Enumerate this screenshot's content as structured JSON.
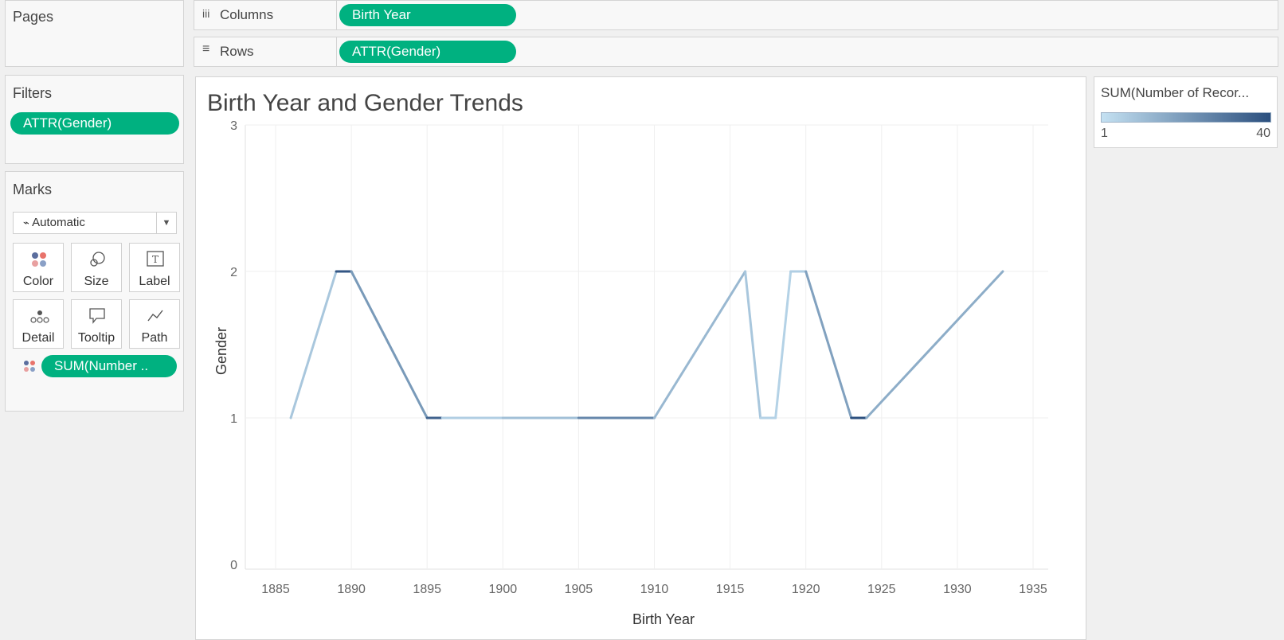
{
  "shelves": {
    "pages_label": "Pages",
    "columns_label": "Columns",
    "columns_pill": "Birth Year",
    "rows_label": "Rows",
    "rows_pill": "ATTR(Gender)",
    "filters_label": "Filters",
    "filters_pill": "ATTR(Gender)"
  },
  "marks": {
    "title": "Marks",
    "type": "Automatic",
    "buttons": [
      "Color",
      "Size",
      "Label",
      "Detail",
      "Tooltip",
      "Path"
    ],
    "color_pill": "SUM(Number .."
  },
  "legend": {
    "title": "SUM(Number of Recor...",
    "min": "1",
    "max": "40",
    "color_low": "#c4e1f2",
    "color_high": "#2b4f7e"
  },
  "colors": {
    "pill": "#00b180"
  },
  "chart_data": {
    "type": "line",
    "title": "Birth Year and Gender Trends",
    "xlabel": "Birth Year",
    "ylabel": "Gender",
    "x_ticks": [
      1885,
      1890,
      1895,
      1900,
      1905,
      1910,
      1915,
      1920,
      1925,
      1930,
      1935
    ],
    "y_ticks": [
      0,
      1,
      2,
      3
    ],
    "xlim": [
      1883,
      1936
    ],
    "ylim": [
      0,
      3
    ],
    "grid": true,
    "points": [
      {
        "x": 1886,
        "y": 1,
        "count": 1
      },
      {
        "x": 1889,
        "y": 2,
        "count": 8
      },
      {
        "x": 1890,
        "y": 2,
        "count": 38
      },
      {
        "x": 1895,
        "y": 1,
        "count": 20
      },
      {
        "x": 1896,
        "y": 1,
        "count": 35
      },
      {
        "x": 1900,
        "y": 1,
        "count": 6
      },
      {
        "x": 1905,
        "y": 1,
        "count": 10
      },
      {
        "x": 1910,
        "y": 1,
        "count": 25
      },
      {
        "x": 1916,
        "y": 2,
        "count": 12
      },
      {
        "x": 1917,
        "y": 1,
        "count": 8
      },
      {
        "x": 1918,
        "y": 1,
        "count": 5
      },
      {
        "x": 1919,
        "y": 2,
        "count": 5
      },
      {
        "x": 1920,
        "y": 2,
        "count": 6
      },
      {
        "x": 1923,
        "y": 1,
        "count": 18
      },
      {
        "x": 1924,
        "y": 1,
        "count": 40
      },
      {
        "x": 1933,
        "y": 2,
        "count": 15
      }
    ]
  }
}
